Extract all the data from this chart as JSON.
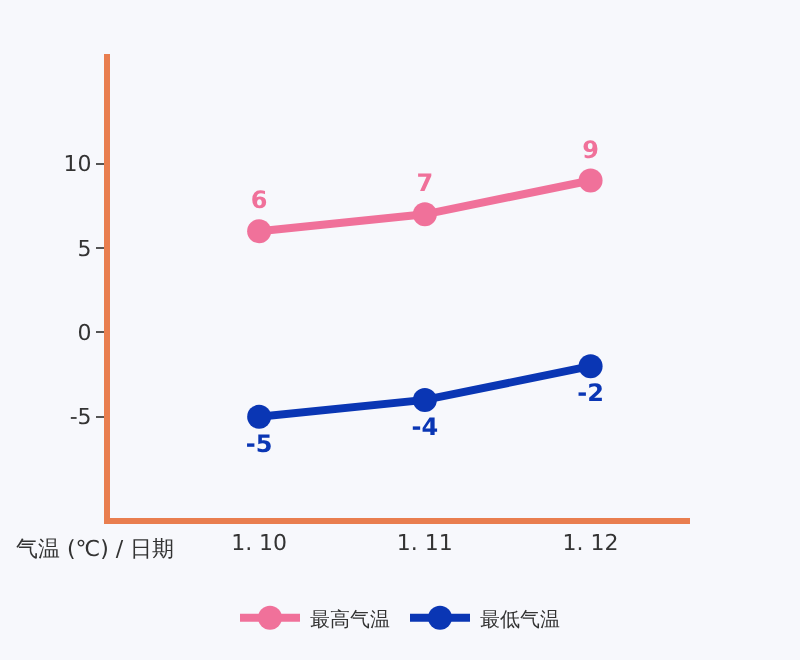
{
  "chart_data": {
    "type": "line",
    "xlabel": "气温 (℃) / 日期",
    "categories": [
      "1. 10",
      "1. 11",
      "1. 12"
    ],
    "series": [
      {
        "name": "最高气温",
        "color": "#f0719a",
        "values": [
          6,
          7,
          9
        ]
      },
      {
        "name": "最低气温",
        "color": "#0a36b4",
        "values": [
          -5,
          -4,
          -2
        ]
      }
    ],
    "ylim": [
      -11,
      16.5
    ],
    "yticks": [
      -5,
      0,
      5,
      10
    ],
    "grid": false,
    "legend": "bottom",
    "marker": "circle",
    "line_style": "solid",
    "data_labels": true
  }
}
